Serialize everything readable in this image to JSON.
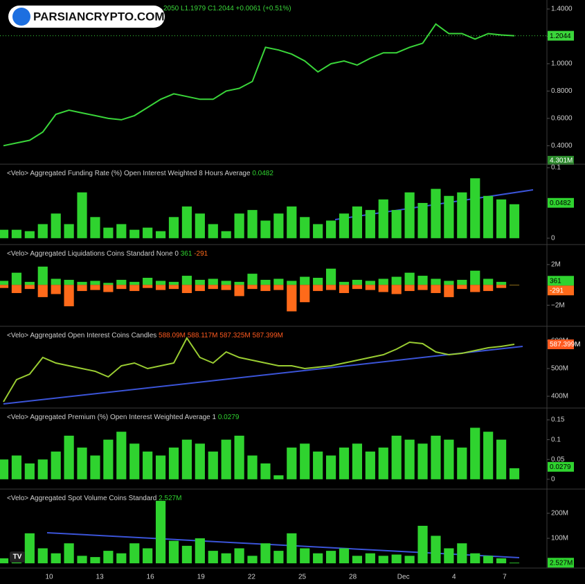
{
  "watermark": "PARSIANCRYPTO.COM",
  "x_axis": {
    "labels": [
      "10",
      "13",
      "16",
      "19",
      "22",
      "25",
      "28",
      "Dec",
      "4",
      "7"
    ]
  },
  "chart_data": [
    {
      "type": "line",
      "title": "2050 L1.1979 C1.2044 +0.0061 (+0.51%)",
      "color": "#3ad63a",
      "tag_color": "#3ad63a",
      "volume_label": "4.301M",
      "values": [
        0.4,
        0.42,
        0.44,
        0.5,
        0.63,
        0.66,
        0.64,
        0.62,
        0.6,
        0.59,
        0.62,
        0.68,
        0.74,
        0.78,
        0.76,
        0.74,
        0.74,
        0.8,
        0.82,
        0.87,
        1.12,
        1.1,
        1.07,
        1.02,
        0.94,
        1.0,
        1.02,
        0.99,
        1.04,
        1.08,
        1.08,
        1.12,
        1.15,
        1.29,
        1.22,
        1.22,
        1.18,
        1.22,
        1.21,
        1.2044
      ],
      "ylim": [
        0.27,
        1.466
      ],
      "yticks": [
        {
          "value": 0.4,
          "label": "0.4000"
        },
        {
          "value": 0.6,
          "label": "0.6000"
        },
        {
          "value": 0.8,
          "label": "0.8000"
        },
        {
          "value": 1.0,
          "label": "1.0000"
        },
        {
          "value": 1.2,
          "label": "1.2000"
        },
        {
          "value": 1.4,
          "label": "1.4000"
        }
      ]
    },
    {
      "type": "bar",
      "title": "<Velo> Aggregated Funding Rate (%) Open Interest Weighted 8 Hours Average",
      "series": [
        {
          "color": "#2fd32f",
          "values": [
            0.012,
            0.012,
            0.01,
            0.02,
            0.035,
            0.02,
            0.065,
            0.03,
            0.015,
            0.02,
            0.012,
            0.015,
            0.01,
            0.03,
            0.045,
            0.035,
            0.02,
            0.01,
            0.035,
            0.04,
            0.025,
            0.035,
            0.045,
            0.03,
            0.02,
            0.025,
            0.035,
            0.045,
            0.04,
            0.055,
            0.04,
            0.065,
            0.05,
            0.07,
            0.06,
            0.065,
            0.085,
            0.06,
            0.055,
            0.0482
          ]
        }
      ],
      "ylim": [
        -0.008,
        0.104
      ],
      "yticks": [
        0,
        0.1
      ]
    },
    {
      "type": "bar",
      "title": "<Velo> Aggregated Liquidations Coins Standard None 0",
      "series": [
        {
          "color": "#2fd32f",
          "values": [
            400000,
            1200000,
            300000,
            1800000,
            600000,
            500000,
            300000,
            400000,
            200000,
            500000,
            300000,
            700000,
            400000,
            300000,
            900000,
            500000,
            600000,
            400000,
            300000,
            1100000,
            500000,
            600000,
            400000,
            800000,
            700000,
            1600000,
            300000,
            500000,
            400000,
            600000,
            800000,
            1200000,
            900000,
            600000,
            400000,
            500000,
            1400000,
            600000,
            300000,
            361
          ]
        },
        {
          "color": "#ff6a1a",
          "values": [
            -300000,
            -800000,
            -400000,
            -1200000,
            -900000,
            -2100000,
            -600000,
            -500000,
            -700000,
            -400000,
            -600000,
            -300000,
            -500000,
            -400000,
            -800000,
            -600000,
            -400000,
            -500000,
            -1100000,
            -400000,
            -600000,
            -500000,
            -2600000,
            -1700000,
            -600000,
            -500000,
            -800000,
            -400000,
            -500000,
            -700000,
            -900000,
            -600000,
            -500000,
            -800000,
            -1200000,
            -400000,
            -700000,
            -600000,
            -300000,
            -291
          ]
        }
      ],
      "ylim": [
        -4000000,
        3900000
      ],
      "yticks": [
        {
          "value": 2000000,
          "label": "2M"
        },
        {
          "value": -2000000,
          "label": "−2M"
        }
      ]
    },
    {
      "type": "line",
      "title": "<Velo> Aggregated Open Interest Coins Candles",
      "ohlc": "588.09M 588.117M 587.325M 587.399M",
      "color": "#9acd32",
      "tag_color": "#ff5a1f",
      "last_label": "587.399M",
      "values": [
        380000000,
        460000000,
        480000000,
        540000000,
        520000000,
        510000000,
        500000000,
        490000000,
        470000000,
        510000000,
        520000000,
        500000000,
        510000000,
        520000000,
        610000000,
        540000000,
        520000000,
        560000000,
        540000000,
        530000000,
        520000000,
        510000000,
        510000000,
        500000000,
        505000000,
        510000000,
        520000000,
        530000000,
        540000000,
        550000000,
        570000000,
        595000000,
        590000000,
        560000000,
        550000000,
        555000000,
        565000000,
        575000000,
        580000000,
        587399000
      ],
      "ylim": [
        360000000,
        650000000
      ],
      "yticks": [
        {
          "value": 400000000,
          "label": "400M"
        },
        {
          "value": 500000000,
          "label": "500M"
        },
        {
          "value": 600000000,
          "label": "600M"
        }
      ]
    },
    {
      "type": "bar",
      "title": "<Velo> Aggregated Premium (%) Open Interest Weighted Average 1",
      "series": [
        {
          "color": "#2fd32f",
          "values": [
            0.05,
            0.06,
            0.04,
            0.05,
            0.07,
            0.11,
            0.08,
            0.06,
            0.1,
            0.12,
            0.09,
            0.07,
            0.06,
            0.08,
            0.1,
            0.09,
            0.07,
            0.1,
            0.11,
            0.06,
            0.04,
            0.01,
            0.08,
            0.09,
            0.07,
            0.06,
            0.08,
            0.09,
            0.07,
            0.08,
            0.11,
            0.1,
            0.09,
            0.11,
            0.1,
            0.08,
            0.13,
            0.12,
            0.1,
            0.0279
          ]
        }
      ],
      "ylim": [
        -0.023,
        0.178
      ],
      "yticks": [
        0,
        0.05,
        0.1,
        0.15
      ]
    },
    {
      "type": "bar",
      "title": "<Velo> Aggregated Spot Volume Coins Standard",
      "last_label": "2.527M",
      "series": [
        {
          "color": "#2fd32f",
          "values": [
            20000000,
            15000000,
            120000000,
            60000000,
            40000000,
            80000000,
            30000000,
            25000000,
            50000000,
            40000000,
            80000000,
            60000000,
            250000000,
            90000000,
            70000000,
            100000000,
            50000000,
            40000000,
            60000000,
            30000000,
            80000000,
            50000000,
            120000000,
            60000000,
            40000000,
            50000000,
            60000000,
            30000000,
            40000000,
            30000000,
            35000000,
            30000000,
            150000000,
            110000000,
            60000000,
            80000000,
            40000000,
            30000000,
            20000000,
            2527000
          ]
        }
      ],
      "ylim": [
        -19000000,
        294000000
      ],
      "yticks": [
        {
          "value": 100000000,
          "label": "100M"
        },
        {
          "value": 200000000,
          "label": "200M"
        }
      ]
    }
  ]
}
